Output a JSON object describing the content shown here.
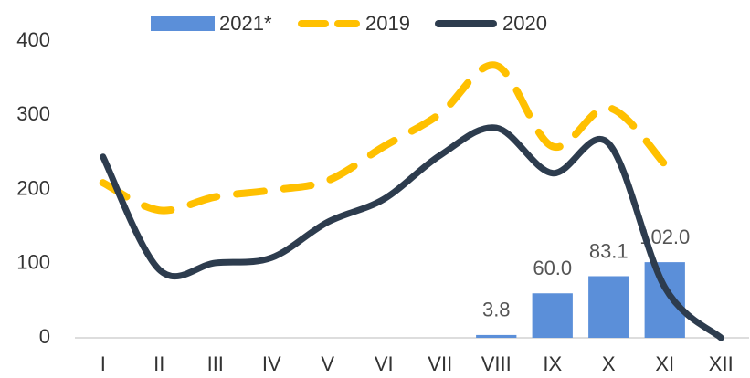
{
  "chart_data": {
    "type": "bar-line",
    "categories": [
      "I",
      "II",
      "III",
      "IV",
      "V",
      "VI",
      "VII",
      "VIII",
      "IX",
      "X",
      "XI",
      "XII"
    ],
    "series": [
      {
        "name": "2021*",
        "type": "bar",
        "color": "#5b8fd9",
        "values": [
          null,
          null,
          null,
          null,
          null,
          null,
          null,
          3.8,
          60,
          83.1,
          102,
          null
        ],
        "value_labels": [
          null,
          null,
          null,
          null,
          null,
          null,
          null,
          "3.8",
          "60.0",
          "83.1",
          "102.0",
          null
        ]
      },
      {
        "name": "2019",
        "type": "line",
        "dashed": true,
        "color": "#ffc000",
        "values": [
          209,
          172,
          190,
          199,
          212,
          258,
          302,
          367,
          258,
          310,
          234,
          null
        ]
      },
      {
        "name": "2020",
        "type": "line",
        "dashed": false,
        "color": "#2d3c4e",
        "values": [
          244,
          92,
          101,
          108,
          156,
          187,
          246,
          283,
          222,
          262,
          68,
          0
        ]
      }
    ],
    "ylim": [
      0,
      400
    ],
    "yticks": [
      0,
      100,
      200,
      300,
      400
    ],
    "grid": false,
    "legend": "top"
  }
}
